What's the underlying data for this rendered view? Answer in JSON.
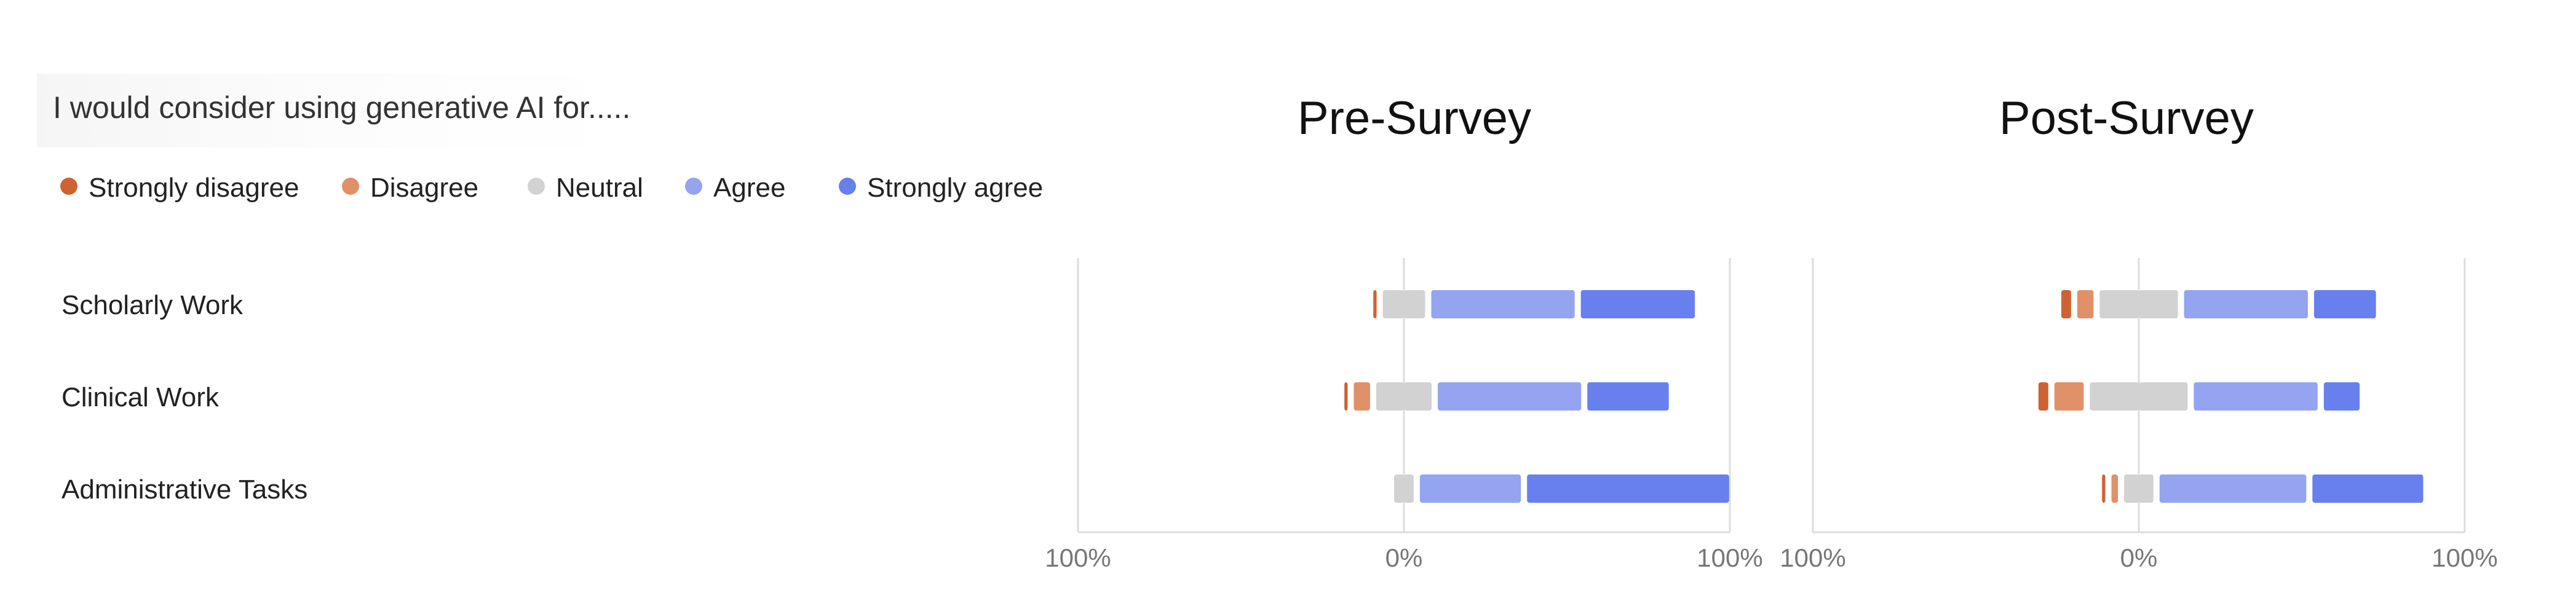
{
  "question": "I would consider using generative AI for.....",
  "legend": [
    {
      "label": "Strongly disagree",
      "color": "#CD6232"
    },
    {
      "label": "Disagree",
      "color": "#E0916A"
    },
    {
      "label": "Neutral",
      "color": "#D2D2D2"
    },
    {
      "label": "Agree",
      "color": "#94A4F0"
    },
    {
      "label": "Strongly agree",
      "color": "#6880EE"
    }
  ],
  "categories": [
    "Scholarly Work",
    "Clinical Work",
    "Administrative Tasks"
  ],
  "chart_data": [
    {
      "type": "bar",
      "title": "Pre-Survey",
      "categories": [
        "Scholarly Work",
        "Clinical Work",
        "Administrative Tasks"
      ],
      "xlim": [
        -100,
        100
      ],
      "tick_labels": [
        "100%",
        "0%",
        "100%"
      ],
      "series": [
        {
          "name": "Strongly disagree",
          "values": [
            1,
            1,
            0
          ]
        },
        {
          "name": "Disagree",
          "values": [
            0,
            5,
            0
          ]
        },
        {
          "name": "Neutral",
          "values": [
            13,
            17,
            6
          ]
        },
        {
          "name": "Agree",
          "values": [
            44,
            44,
            31
          ]
        },
        {
          "name": "Strongly agree",
          "values": [
            35,
            25,
            62
          ]
        }
      ]
    },
    {
      "type": "bar",
      "title": "Post-Survey",
      "categories": [
        "Scholarly Work",
        "Clinical Work",
        "Administrative Tasks"
      ],
      "xlim": [
        -100,
        100
      ],
      "tick_labels": [
        "100%",
        "0%",
        "100%"
      ],
      "series": [
        {
          "name": "Strongly disagree",
          "values": [
            3,
            3,
            1
          ]
        },
        {
          "name": "Disagree",
          "values": [
            5,
            9,
            2
          ]
        },
        {
          "name": "Neutral",
          "values": [
            24,
            30,
            9
          ]
        },
        {
          "name": "Agree",
          "values": [
            38,
            38,
            45
          ]
        },
        {
          "name": "Strongly agree",
          "values": [
            19,
            11,
            34
          ]
        }
      ]
    }
  ]
}
